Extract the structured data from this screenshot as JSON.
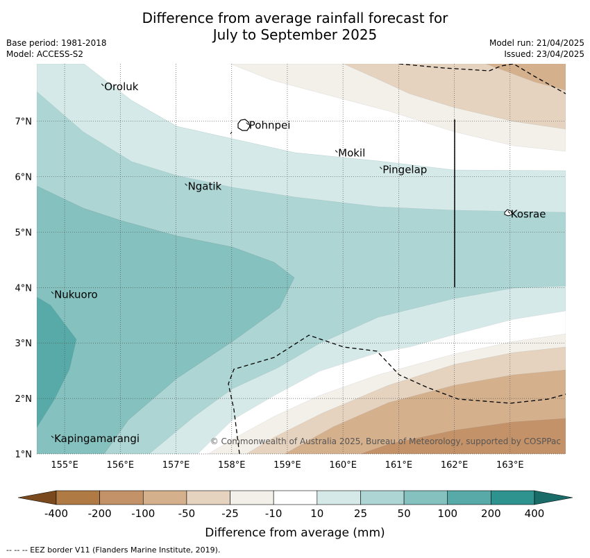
{
  "title_line1": "Difference from average rainfall forecast for",
  "title_line2": "July to September 2025",
  "base_period": "Base period: 1981-2018",
  "model": "Model: ACCESS-S2",
  "model_run": "Model run: 21/04/2025",
  "issued": "Issued: 23/04/2025",
  "copyright": "© Commonwealth of Australia 2025, Bureau of Meteorology, supported by COSPPac",
  "footer_note": "--  --  -- EEZ border V11 (Flanders Marine Institute, 2019).",
  "axes": {
    "lon_range": [
      154.5,
      164.0
    ],
    "lat_range": [
      1.0,
      8.0
    ],
    "lon_ticks": [
      "155°E",
      "156°E",
      "157°E",
      "158°E",
      "159°E",
      "160°E",
      "161°E",
      "162°E",
      "163°E"
    ],
    "lat_ticks": [
      "1°N",
      "2°N",
      "3°N",
      "4°N",
      "5°N",
      "6°N",
      "7°N"
    ],
    "grid": true
  },
  "places": [
    {
      "name": "Oroluk",
      "lon": 155.7,
      "lat": 7.6
    },
    {
      "name": "Pohnpei",
      "lon": 158.3,
      "lat": 6.9
    },
    {
      "name": "Mokil",
      "lon": 159.9,
      "lat": 6.4
    },
    {
      "name": "Pingelap",
      "lon": 160.7,
      "lat": 6.1
    },
    {
      "name": "Ngatik",
      "lon": 157.2,
      "lat": 5.8
    },
    {
      "name": "Kosrae",
      "lon": 163.0,
      "lat": 5.3
    },
    {
      "name": "Nukuoro",
      "lon": 154.8,
      "lat": 3.85
    },
    {
      "name": "Kapingamarangi",
      "lon": 154.8,
      "lat": 1.25
    }
  ],
  "colorbar": {
    "title": "Difference from average (mm)",
    "ticks": [
      "-400",
      "-200",
      "-100",
      "-50",
      "-25",
      "-10",
      "10",
      "25",
      "50",
      "100",
      "200",
      "400"
    ],
    "colors": [
      "#7a4a1e",
      "#b07a45",
      "#c49268",
      "#d4b08d",
      "#e5d3c0",
      "#f3efe9",
      "#ffffff",
      "#d5e9e8",
      "#acd5d4",
      "#84c1bf",
      "#57aaa7",
      "#2e928e",
      "#1a6c69"
    ]
  }
}
